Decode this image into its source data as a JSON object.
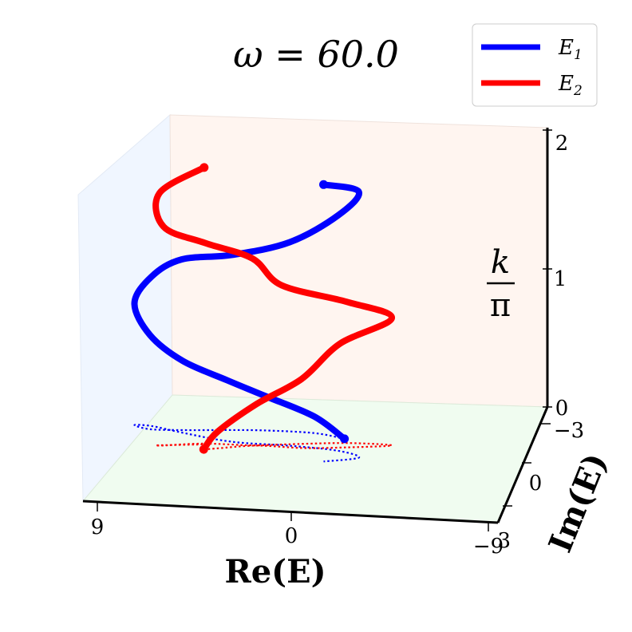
{
  "chart_data": {
    "type": "line",
    "title": "ω = 60.0",
    "xlabel": "Re(E)",
    "ylabel": "Im(E)",
    "zlabel_num": "k",
    "zlabel_den": "π",
    "x_ticks": [
      "9",
      "0",
      "−9"
    ],
    "y_ticks": [
      "−3",
      "0",
      "3"
    ],
    "z_ticks": [
      "0",
      "1",
      "2"
    ],
    "xlim": [
      -9,
      9
    ],
    "ylim": [
      -3,
      3
    ],
    "zlim": [
      0,
      2
    ],
    "legend_placement": "top-right",
    "projection_on_floor": true,
    "series": [
      {
        "name": "E",
        "subscript": "1",
        "color": "#0000ff",
        "points": [
          [
            -2.0,
            1.1,
            0.0
          ],
          [
            -0.5,
            1.35,
            0.12
          ],
          [
            1.8,
            1.35,
            0.25
          ],
          [
            3.5,
            1.25,
            0.36
          ],
          [
            5.5,
            1.1,
            0.5
          ],
          [
            7.0,
            1.05,
            0.68
          ],
          [
            7.8,
            1.25,
            0.88
          ],
          [
            7.0,
            1.25,
            1.08
          ],
          [
            5.5,
            0.95,
            1.25
          ],
          [
            3.0,
            0.55,
            1.35
          ],
          [
            0.3,
            0.5,
            1.47
          ],
          [
            -2.0,
            0.35,
            1.7
          ],
          [
            -3.1,
            0.0,
            1.92
          ],
          [
            -1.6,
            -0.35,
            2.0
          ]
        ]
      },
      {
        "name": "E",
        "subscript": "2",
        "color": "#ff0000",
        "points": [
          [
            4.1,
            0.0,
            0.0
          ],
          [
            3.5,
            0.1,
            0.12
          ],
          [
            1.8,
            0.4,
            0.3
          ],
          [
            -0.3,
            0.4,
            0.5
          ],
          [
            -2.0,
            0.55,
            0.75
          ],
          [
            -4.3,
            0.85,
            0.92
          ],
          [
            -2.2,
            0.85,
            1.02
          ],
          [
            0.7,
            0.55,
            1.15
          ],
          [
            2.0,
            0.4,
            1.35
          ],
          [
            4.2,
            0.35,
            1.45
          ],
          [
            6.0,
            0.1,
            1.58
          ],
          [
            6.2,
            0.1,
            1.82
          ],
          [
            4.2,
            0.3,
            2.0
          ]
        ]
      }
    ]
  }
}
